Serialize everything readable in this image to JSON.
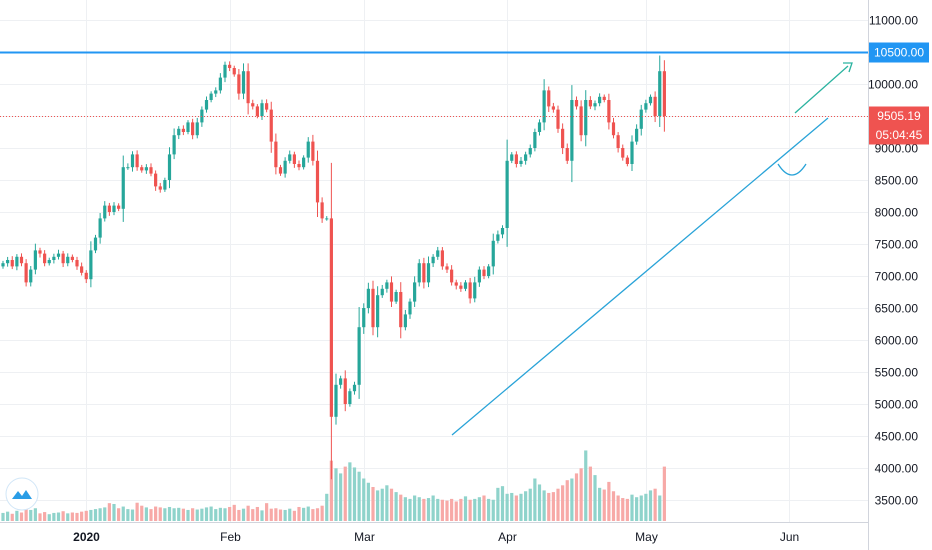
{
  "chart_data": {
    "type": "candlestick",
    "title": "",
    "xlabel": "",
    "ylabel": "",
    "ylim": [
      3200,
      11200
    ],
    "y_ticks": [
      "11000.00",
      "10500.00",
      "10000.00",
      "9500.00",
      "9000.00",
      "8500.00",
      "8000.00",
      "7500.00",
      "7000.00",
      "6500.00",
      "6000.00",
      "5500.00",
      "5000.00",
      "4500.00",
      "4000.00",
      "3500.00"
    ],
    "x_ticks": [
      {
        "label": "2020",
        "bold": true,
        "day": 20
      },
      {
        "label": "Feb",
        "bold": false,
        "day": 51
      },
      {
        "label": "Mar",
        "bold": false,
        "day": 80
      },
      {
        "label": "Apr",
        "bold": false,
        "day": 111
      },
      {
        "label": "May",
        "bold": false,
        "day": 141
      },
      {
        "label": "Jun",
        "bold": false,
        "day": 172
      }
    ],
    "closes": [
      7200,
      7250,
      7150,
      7300,
      7200,
      6900,
      7100,
      7400,
      7350,
      7200,
      7250,
      7300,
      7350,
      7200,
      7300,
      7250,
      7150,
      7050,
      6950,
      7400,
      7600,
      7900,
      8100,
      8000,
      8100,
      8050,
      8700,
      8700,
      8900,
      8700,
      8650,
      8700,
      8600,
      8400,
      8350,
      8500,
      8900,
      9200,
      9300,
      9250,
      9400,
      9200,
      9400,
      9600,
      9750,
      9850,
      9900,
      10100,
      10300,
      10250,
      10150,
      9850,
      10200,
      9700,
      9650,
      9500,
      9700,
      9600,
      9100,
      8700,
      8600,
      8800,
      8900,
      8750,
      8700,
      8850,
      9100,
      8800,
      8150,
      7900,
      7900,
      4800,
      5300,
      5400,
      5000,
      5200,
      5300,
      6200,
      6500,
      6800,
      6200,
      6700,
      6800,
      6900,
      6600,
      6750,
      6200,
      6400,
      6600,
      6900,
      7200,
      6900,
      7200,
      7300,
      7400,
      7150,
      7100,
      6900,
      6850,
      6800,
      6900,
      6650,
      6900,
      7100,
      7000,
      7150,
      7550,
      7650,
      7750,
      8800,
      8900,
      8750,
      8800,
      8900,
      9000,
      9250,
      9400,
      9900,
      9650,
      9600,
      9300,
      9000,
      8800,
      9750,
      9650,
      9200,
      9750,
      9650,
      9700,
      9800,
      9750,
      9400,
      9200,
      9000,
      8850,
      8750,
      9100,
      9300,
      9600,
      9700,
      9800,
      9500,
      10200,
      9500
    ],
    "volumes": [
      95,
      110,
      85,
      120,
      100,
      140,
      130,
      150,
      90,
      105,
      80,
      95,
      100,
      115,
      90,
      100,
      95,
      110,
      120,
      130,
      140,
      150,
      160,
      210,
      200,
      150,
      170,
      140,
      135,
      215,
      180,
      160,
      140,
      170,
      160,
      150,
      165,
      150,
      155,
      145,
      130,
      150,
      135,
      145,
      160,
      170,
      140,
      155,
      150,
      165,
      190,
      130,
      145,
      180,
      140,
      165,
      125,
      210,
      145,
      150,
      135,
      130,
      145,
      120,
      165,
      155,
      170,
      140,
      150,
      180,
      320,
      710,
      620,
      560,
      640,
      690,
      630,
      580,
      500,
      450,
      400,
      360,
      380,
      420,
      380,
      340,
      310,
      280,
      260,
      300,
      280,
      260,
      270,
      300,
      260,
      250,
      240,
      260,
      230,
      260,
      290,
      250,
      260,
      280,
      300,
      260,
      250,
      390,
      410,
      320,
      330,
      300,
      320,
      350,
      380,
      500,
      430,
      360,
      330,
      340,
      380,
      420,
      480,
      500,
      560,
      620,
      830,
      640,
      540,
      390,
      370,
      460,
      350,
      300,
      270,
      260,
      310,
      280,
      300,
      320,
      360,
      380,
      300,
      640
    ]
  },
  "levels": {
    "resistance": {
      "price": 10500,
      "label": "10500.00",
      "color": "#2196f3"
    },
    "current": {
      "price": 9505.19,
      "label": "9505.19",
      "color": "#ef5350"
    },
    "countdown": {
      "label": "05:04:45",
      "color": "#ef5350"
    }
  },
  "colors": {
    "up": "#26a69a",
    "down": "#ef5350",
    "up_volume": "#8fd3cb",
    "down_volume": "#f7a9a7",
    "grid": "#eef0f3",
    "trendline": "#29a3d8",
    "resistance": "#2196f3"
  }
}
